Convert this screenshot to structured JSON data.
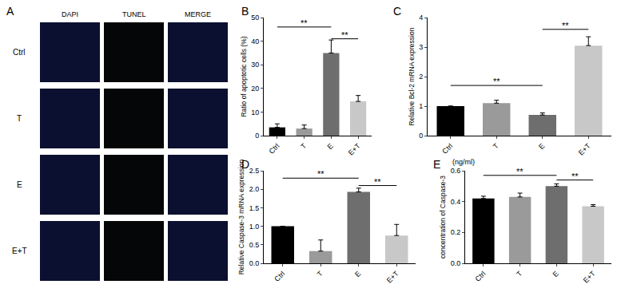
{
  "chart_data": [
    {
      "type": "image_grid",
      "panel": "A",
      "columns": [
        "DAPI",
        "TUNEL",
        "MERGE"
      ],
      "rows": [
        "Ctrl",
        "T",
        "E",
        "E+T"
      ]
    },
    {
      "type": "bar",
      "panel": "B",
      "y_label": "Ratio of apoptotic cells (%)",
      "categories": [
        "Ctrl",
        "T",
        "E",
        "E+T"
      ],
      "values": [
        3.5,
        3,
        35,
        14.5
      ],
      "errors": [
        1.5,
        1.5,
        5.5,
        2.5
      ],
      "colors": [
        "#000000",
        "#9a9a9a",
        "#6e6e6e",
        "#c8c8c8"
      ],
      "ylim": [
        0,
        50
      ],
      "yticks": [
        0,
        10,
        20,
        30,
        40,
        50
      ],
      "grid": false,
      "comparisons": [
        {
          "from": "Ctrl",
          "to": "E",
          "y": 46,
          "label": "**"
        },
        {
          "from": "E",
          "to": "E+T",
          "y": 41,
          "label": "**"
        }
      ]
    },
    {
      "type": "bar",
      "panel": "C",
      "y_label": "Relative Bcl-2 mRNA expression",
      "categories": [
        "Ctrl",
        "T",
        "E",
        "E+T"
      ],
      "values": [
        1,
        1.1,
        0.7,
        3.05
      ],
      "errors": [
        0,
        0.1,
        0.07,
        0.3
      ],
      "colors": [
        "#000000",
        "#9a9a9a",
        "#6e6e6e",
        "#c8c8c8"
      ],
      "ylim": [
        0,
        4
      ],
      "yticks": [
        0,
        1,
        2,
        3,
        4
      ],
      "grid": false,
      "comparisons": [
        {
          "from": "Ctrl",
          "to": "E",
          "y": 1.7,
          "label": "**"
        },
        {
          "from": "E",
          "to": "E+T",
          "y": 3.6,
          "label": "**"
        }
      ]
    },
    {
      "type": "bar",
      "panel": "D",
      "y_label": "Relative Caspase-3 mRNA expression",
      "categories": [
        "Ctrl",
        "T",
        "E",
        "E+T"
      ],
      "values": [
        1,
        0.33,
        1.93,
        0.75
      ],
      "errors": [
        0,
        0.3,
        0.1,
        0.3
      ],
      "colors": [
        "#000000",
        "#9a9a9a",
        "#6e6e6e",
        "#c8c8c8"
      ],
      "ylim": [
        0,
        2.5
      ],
      "yticks": [
        {
          "value": 0,
          "label": "0.0"
        },
        0.5,
        {
          "value": 1,
          "label": "1.0"
        },
        1.5,
        {
          "value": 2,
          "label": "2.0"
        },
        2.5
      ],
      "grid": false,
      "comparisons": [
        {
          "from": "Ctrl",
          "to": "E",
          "y": 2.3,
          "label": "**"
        },
        {
          "from": "E",
          "to": "E+T",
          "y": 2.1,
          "label": "**"
        }
      ]
    },
    {
      "type": "bar",
      "panel": "E",
      "y_label": "concentration of Caspase-3",
      "annotations": [
        "(ng/ml)"
      ],
      "categories": [
        "Ctrl",
        "T",
        "E",
        "E+T"
      ],
      "values": [
        0.42,
        0.43,
        0.5,
        0.37
      ],
      "errors": [
        0.015,
        0.025,
        0.015,
        0.01
      ],
      "colors": [
        "#000000",
        "#9a9a9a",
        "#6e6e6e",
        "#c8c8c8"
      ],
      "ylim": [
        0,
        0.6
      ],
      "yticks": [
        {
          "value": 0,
          "label": "0.0"
        },
        0.2,
        0.4,
        0.6
      ],
      "grid": false,
      "comparisons": [
        {
          "from": "Ctrl",
          "to": "E",
          "y": 0.57,
          "label": "**"
        },
        {
          "from": "E",
          "to": "E+T",
          "y": 0.54,
          "label": "**"
        }
      ]
    }
  ]
}
